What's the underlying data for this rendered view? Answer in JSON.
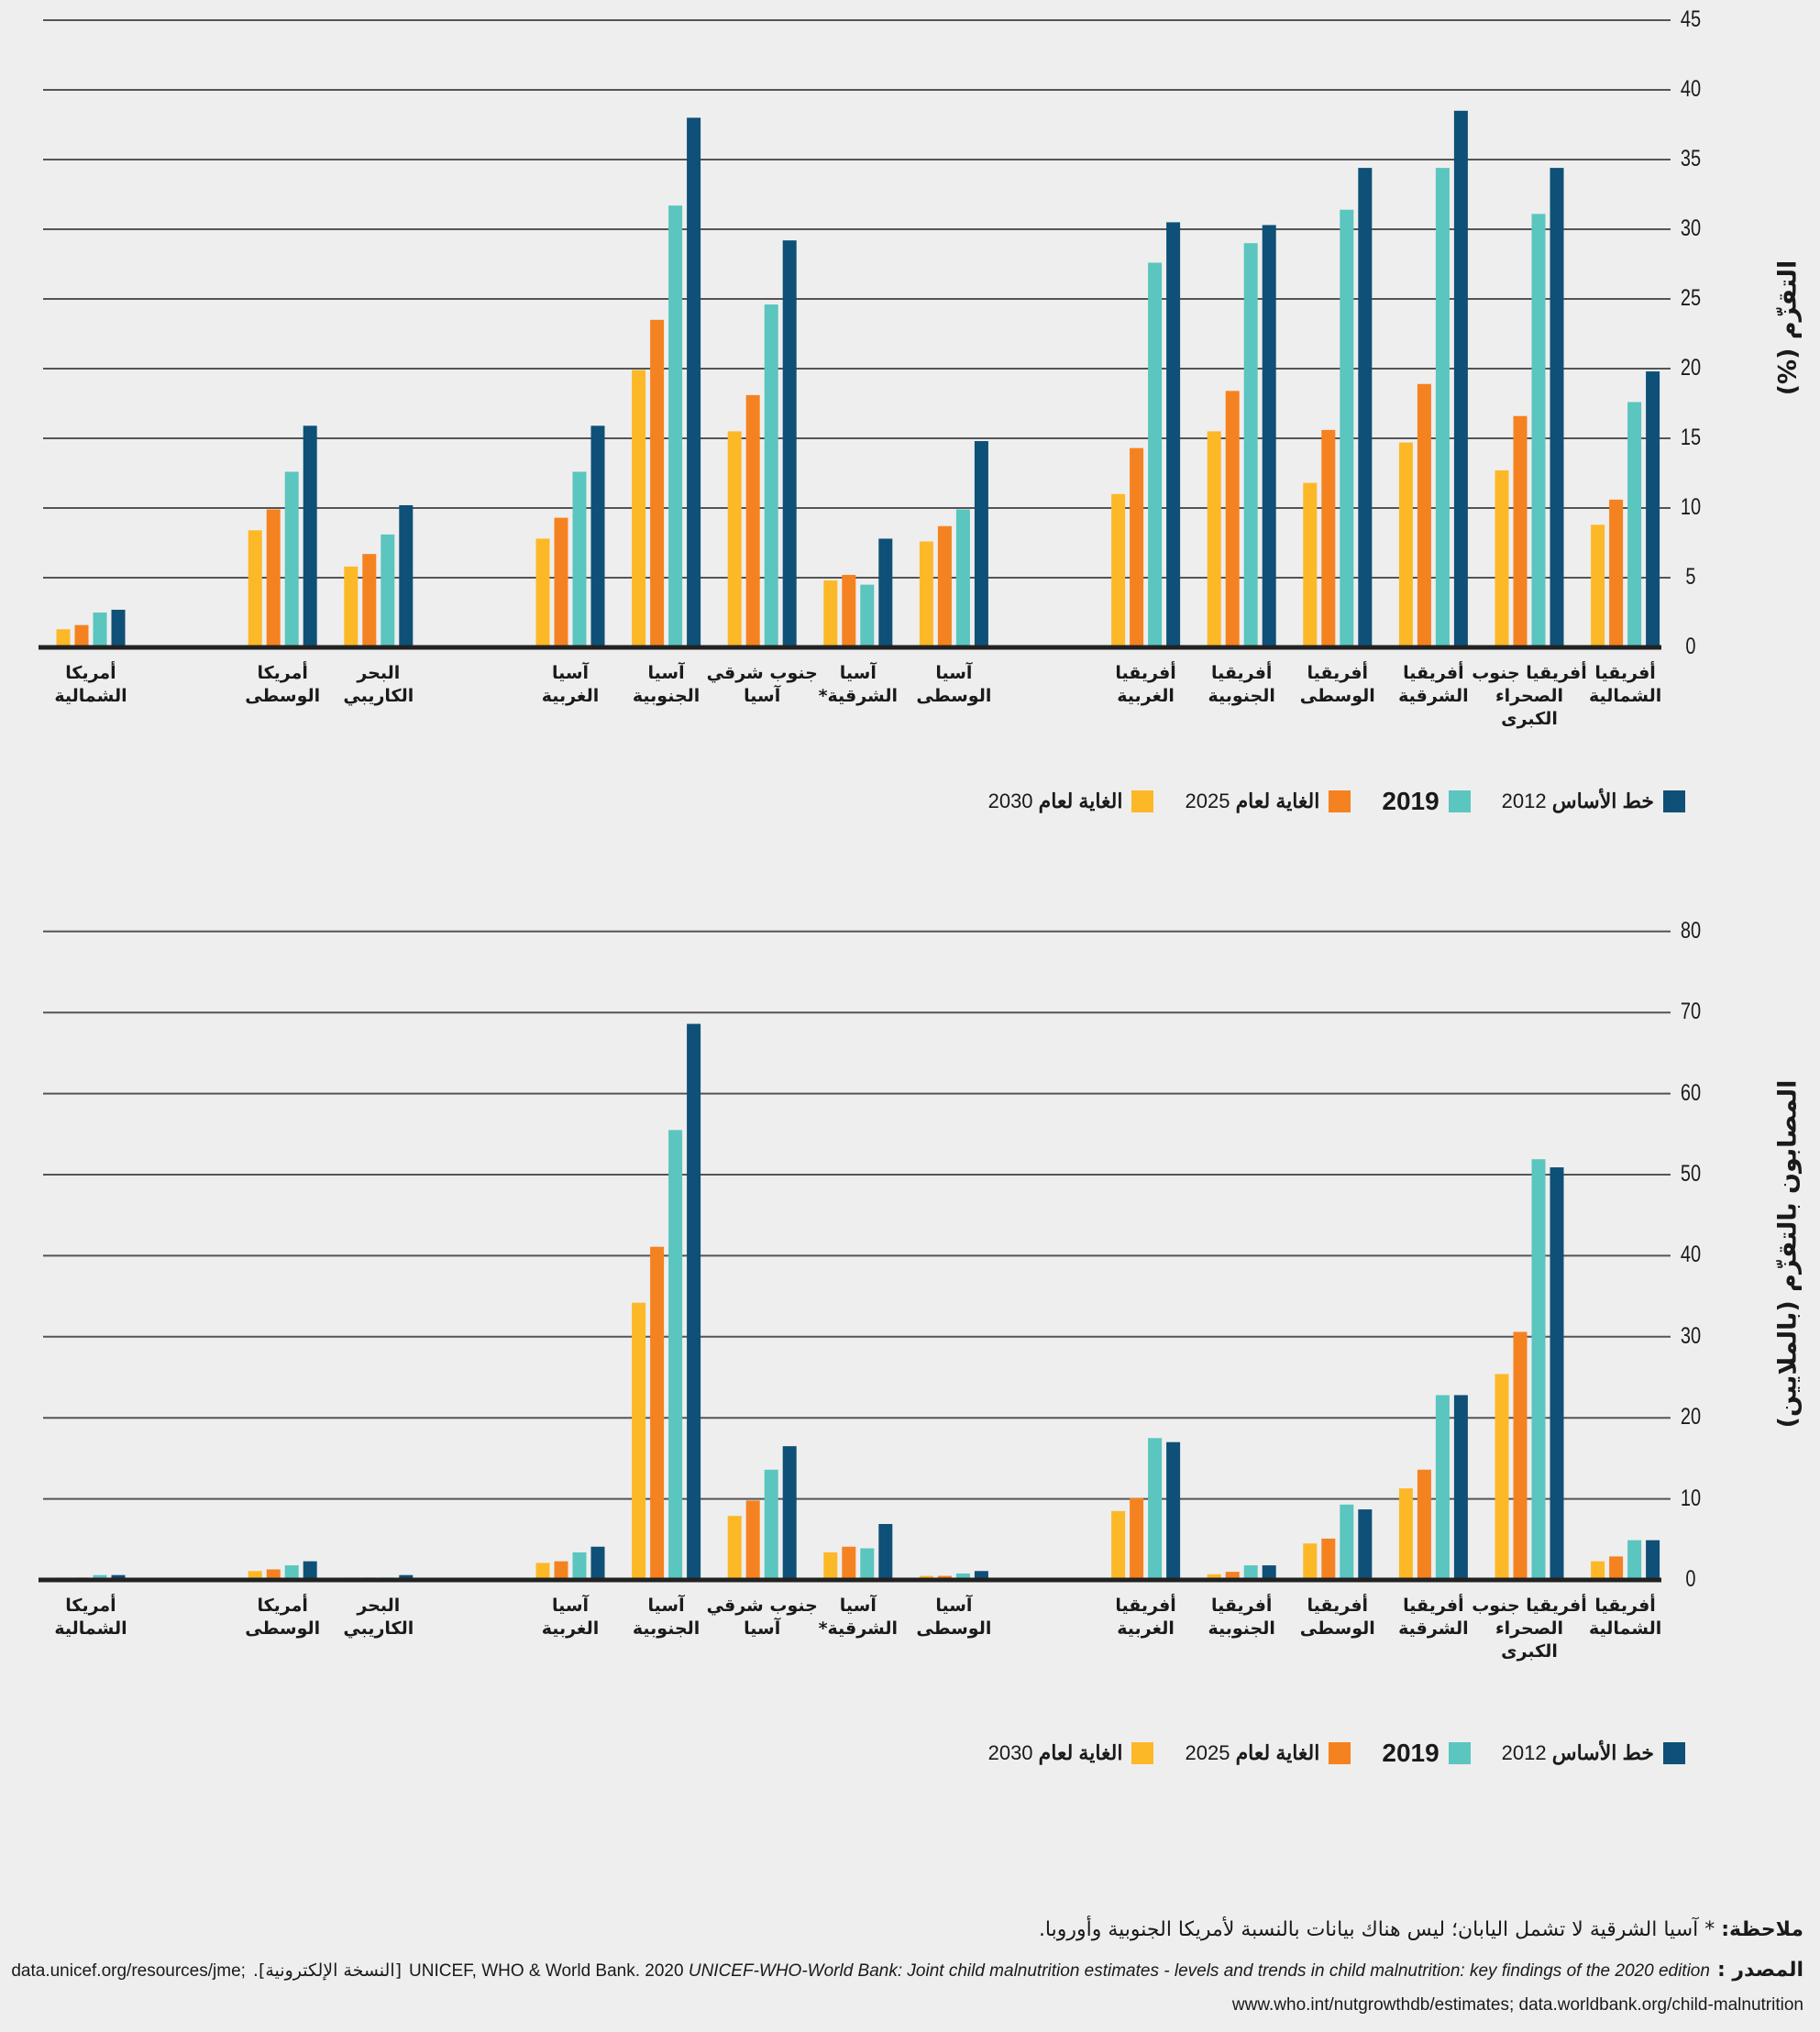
{
  "colors": {
    "target_2030": "#FDB827",
    "target_2025": "#F58220",
    "y2019": "#5BC5BF",
    "baseline_2012": "#0E5077",
    "background": "#EEEEEE"
  },
  "categories": [
    "أمريكا\nالشمالية",
    "أمريكا\nالوسطى",
    "البحر\nالكاريبي",
    "آسيا\nالغربية",
    "آسيا\nالجنوبية",
    "جنوب شرقي\nآسيا",
    "آسيا\nالشرقية*",
    "آسيا\nالوسطى",
    "أفريقيا\nالغربية",
    "أفريقيا\nالجنوبية",
    "أفريقيا\nالوسطى",
    "أفريقيا\nالشرقية",
    "أفريقيا جنوب\nالصحراء\nالكبرى",
    "أفريقيا\nالشمالية"
  ],
  "legend": {
    "baseline": {
      "label": "خط الأساس",
      "year": "2012"
    },
    "y2019": {
      "label": "2019"
    },
    "t2025": {
      "label": "الغاية لعام",
      "year": "2025"
    },
    "t2030": {
      "label": "الغاية لعام",
      "year": "2030"
    }
  },
  "chart_data": [
    {
      "type": "bar",
      "ylabel": "التقزّم (%)",
      "ylim": [
        0,
        45
      ],
      "yticks": [
        "0",
        "5",
        "10",
        "15",
        "20",
        "25",
        "30",
        "35",
        "40",
        "45"
      ],
      "grid": true,
      "legend_position": "bottom",
      "series": [
        {
          "name": "الغاية لعام 2030",
          "color": "#FDB827",
          "values": [
            1.3,
            8.4,
            5.8,
            7.8,
            19.9,
            15.5,
            4.8,
            7.6,
            11.0,
            15.5,
            11.8,
            14.7,
            12.7,
            8.8
          ]
        },
        {
          "name": "الغاية لعام 2025",
          "color": "#F58220",
          "values": [
            1.6,
            9.9,
            6.7,
            9.3,
            23.5,
            18.1,
            5.2,
            8.7,
            14.3,
            18.4,
            15.6,
            18.9,
            16.6,
            10.6
          ]
        },
        {
          "name": "2019",
          "color": "#5BC5BF",
          "values": [
            2.5,
            12.6,
            8.1,
            12.6,
            31.7,
            24.6,
            4.5,
            9.9,
            27.6,
            29.0,
            31.4,
            34.4,
            31.1,
            17.6
          ]
        },
        {
          "name": "خط الأساس 2012",
          "color": "#0E5077",
          "values": [
            2.7,
            15.9,
            10.2,
            15.9,
            38.0,
            29.2,
            7.8,
            14.8,
            30.5,
            30.3,
            34.4,
            38.5,
            34.4,
            19.8
          ]
        }
      ]
    },
    {
      "type": "bar",
      "ylabel": "المصابون بالتقزّم (بالملايين)",
      "ylim": [
        0,
        80
      ],
      "yticks": [
        "0",
        "10",
        "20",
        "30",
        "40",
        "50",
        "60",
        "70",
        "80"
      ],
      "grid": true,
      "legend_position": "bottom",
      "series": [
        {
          "name": "الغاية لعام 2030",
          "color": "#FDB827",
          "values": [
            0.3,
            1.1,
            0.3,
            2.1,
            34.2,
            7.9,
            3.4,
            0.5,
            8.5,
            0.7,
            4.5,
            11.3,
            25.4,
            2.3
          ]
        },
        {
          "name": "الغاية لعام 2025",
          "color": "#F58220",
          "values": [
            0.3,
            1.3,
            0.3,
            2.3,
            41.1,
            9.8,
            4.1,
            0.5,
            10.1,
            1.0,
            5.1,
            13.6,
            30.6,
            2.9
          ]
        },
        {
          "name": "2019",
          "color": "#5BC5BF",
          "values": [
            0.6,
            1.8,
            0.3,
            3.4,
            55.5,
            13.6,
            3.9,
            0.8,
            17.5,
            1.8,
            9.3,
            22.8,
            51.9,
            4.9
          ]
        },
        {
          "name": "خط الأساس 2012",
          "color": "#0E5077",
          "values": [
            0.6,
            2.3,
            0.6,
            4.1,
            68.6,
            16.5,
            6.9,
            1.1,
            17.0,
            1.8,
            8.7,
            22.8,
            50.9,
            4.9
          ]
        }
      ]
    }
  ],
  "footer": {
    "note_label": "ملاحظة:",
    "note_text": "* آسيا الشرقية لا تشمل اليابان؛ ليس هناك بيانات بالنسبة لأمريكا الجنوبية وأوروبا.",
    "source_label": "المصدر :",
    "source_citation": "UNICEF, WHO & World Bank. 2020",
    "source_title": "UNICEF-WHO-World Bank: Joint child malnutrition estimates - levels and trends in child malnutrition: key findings of the 2020 edition",
    "source_edition": "[النسخة الإلكترونية].",
    "source_url1": "data.unicef.org/resources/jme;",
    "source_url2": "www.who.int/nutgrowthdb/estimates; data.worldbank.org/child-malnutrition"
  }
}
